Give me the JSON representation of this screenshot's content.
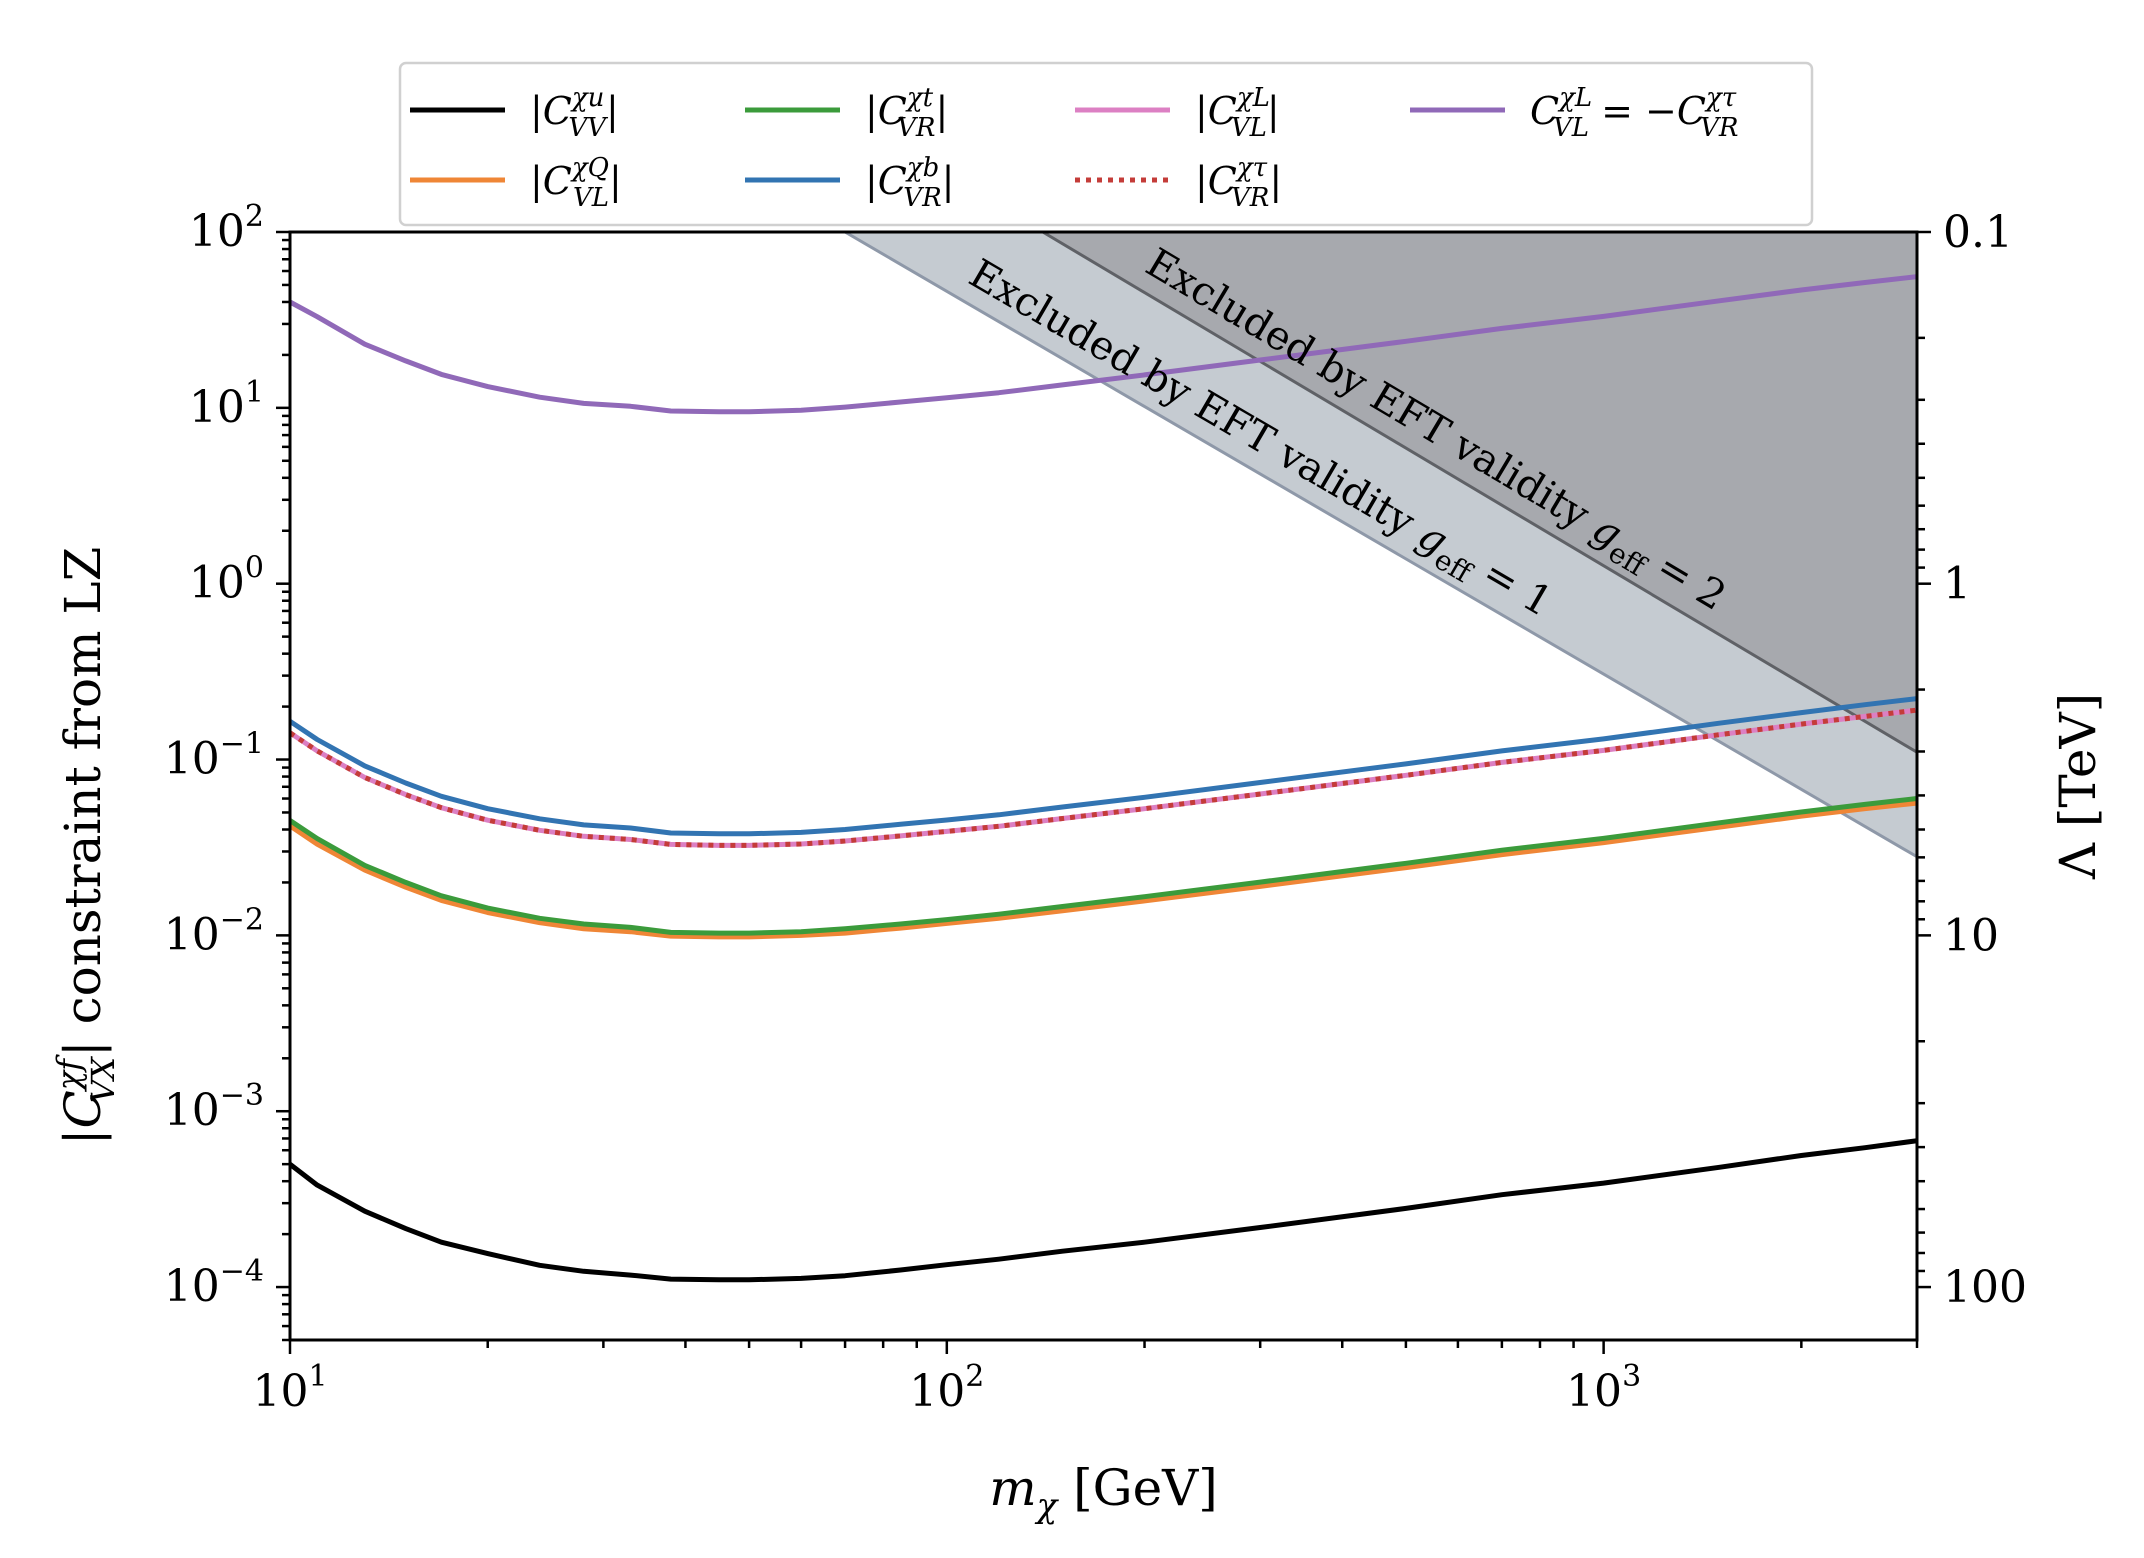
{
  "chart_data": {
    "type": "line",
    "title": "",
    "xlabel": "m_χ [GeV]",
    "ylabel": "|C^{χf}_{VX}| constraint from LZ",
    "y2label": "Λ [TeV]",
    "xscale": "log",
    "yscale": "log",
    "xlim": [
      10,
      3000
    ],
    "ylim": [
      5e-05,
      100
    ],
    "x_ticks": [
      {
        "value": 10,
        "base": "10",
        "exp": "1"
      },
      {
        "value": 100,
        "base": "10",
        "exp": "2"
      },
      {
        "value": 1000,
        "base": "10",
        "exp": "3"
      }
    ],
    "y_ticks": [
      {
        "value": 0.0001,
        "base": "10",
        "exp": "−4"
      },
      {
        "value": 0.001,
        "base": "10",
        "exp": "−3"
      },
      {
        "value": 0.01,
        "base": "10",
        "exp": "−2"
      },
      {
        "value": 0.1,
        "base": "10",
        "exp": "−1"
      },
      {
        "value": 1,
        "base": "10",
        "exp": "0"
      },
      {
        "value": 10,
        "base": "10",
        "exp": "1"
      },
      {
        "value": 100,
        "base": "10",
        "exp": "2"
      }
    ],
    "y2_ticks": [
      {
        "value": 0.1,
        "label": "0.1"
      },
      {
        "value": 1,
        "label": "1"
      },
      {
        "value": 10,
        "label": "10"
      },
      {
        "value": 100,
        "label": "100"
      }
    ],
    "x": [
      10,
      11,
      13,
      15,
      17,
      20,
      24,
      28,
      33,
      38,
      45,
      50,
      60,
      70,
      85,
      100,
      120,
      150,
      200,
      300,
      500,
      700,
      1000,
      1500,
      2000,
      2500,
      3000
    ],
    "series": [
      {
        "name": "|C^{χu}_{VV}|",
        "color": "#000000",
        "style": "solid",
        "values": [
          0.0005,
          0.00038,
          0.00027,
          0.000215,
          0.00018,
          0.000155,
          0.000133,
          0.000123,
          0.000117,
          0.000111,
          0.00011,
          0.00011,
          0.000112,
          0.000116,
          0.000125,
          0.000134,
          0.000144,
          0.00016,
          0.00018,
          0.000218,
          0.00028,
          0.000335,
          0.00039,
          0.00048,
          0.00056,
          0.00062,
          0.00068
        ]
      },
      {
        "name": "|C^{χQ}_{VL}|",
        "color": "#ef8636",
        "style": "solid",
        "values": [
          0.042,
          0.033,
          0.0235,
          0.0188,
          0.0158,
          0.0135,
          0.0118,
          0.0109,
          0.0105,
          0.0099,
          0.0098,
          0.0098,
          0.01,
          0.0103,
          0.011,
          0.0117,
          0.0125,
          0.0138,
          0.0157,
          0.019,
          0.0243,
          0.0288,
          0.0337,
          0.0413,
          0.0476,
          0.0525,
          0.0565
        ]
      },
      {
        "name": "|C^{χt}_{VR}|",
        "color": "#3b9b3b",
        "style": "solid",
        "values": [
          0.045,
          0.0355,
          0.025,
          0.02,
          0.0168,
          0.0143,
          0.0125,
          0.0116,
          0.0111,
          0.0104,
          0.0103,
          0.0103,
          0.0105,
          0.0109,
          0.0116,
          0.0123,
          0.0132,
          0.0146,
          0.0166,
          0.0201,
          0.0257,
          0.0305,
          0.0356,
          0.0437,
          0.0503,
          0.0556,
          0.06
        ]
      },
      {
        "name": "|C^{χb}_{VR}|",
        "color": "#3274b2",
        "style": "solid",
        "values": [
          0.165,
          0.13,
          0.092,
          0.0735,
          0.0618,
          0.0525,
          0.046,
          0.0425,
          0.0408,
          0.0382,
          0.0378,
          0.0378,
          0.0385,
          0.04,
          0.0428,
          0.0453,
          0.0485,
          0.0537,
          0.061,
          0.074,
          0.0945,
          0.112,
          0.131,
          0.161,
          0.185,
          0.205,
          0.222
        ]
      },
      {
        "name": "|C^{χL}_{VL}|",
        "color": "#dc80c3",
        "style": "solid",
        "values": [
          0.142,
          0.112,
          0.079,
          0.0632,
          0.0532,
          0.0452,
          0.0396,
          0.0366,
          0.0351,
          0.0329,
          0.0325,
          0.0325,
          0.0331,
          0.0344,
          0.0368,
          0.039,
          0.0417,
          0.0462,
          0.0525,
          0.0637,
          0.0813,
          0.0963,
          0.1127,
          0.1385,
          0.159,
          0.176,
          0.191
        ]
      },
      {
        "name": "|C^{χτ}_{VR}|",
        "color": "#c43c39",
        "style": "dotted",
        "values": [
          0.142,
          0.112,
          0.079,
          0.0632,
          0.0532,
          0.0452,
          0.0396,
          0.0366,
          0.0351,
          0.0329,
          0.0325,
          0.0325,
          0.0331,
          0.0344,
          0.0368,
          0.039,
          0.0417,
          0.0462,
          0.0525,
          0.0637,
          0.0813,
          0.0963,
          0.1127,
          0.1385,
          0.159,
          0.176,
          0.191
        ]
      },
      {
        "name": "C^{χL}_{VL} = −C^{χτ}_{VR}",
        "color": "#9069b8",
        "style": "solid",
        "values": [
          40,
          33,
          23,
          18.5,
          15.5,
          13.2,
          11.5,
          10.6,
          10.2,
          9.6,
          9.5,
          9.5,
          9.7,
          10.1,
          10.8,
          11.4,
          12.2,
          13.5,
          15.4,
          18.7,
          23.9,
          28.3,
          33.1,
          40.6,
          46.8,
          51.6,
          55.8
        ]
      }
    ],
    "bands": [
      {
        "label": "Excluded by EFT validity g_eff = 1",
        "color": "#c5cad1",
        "line": [
          [
            70,
            100
          ],
          [
            3000,
            0.028
          ]
        ]
      },
      {
        "label": "Excluded by EFT validity g_eff = 2",
        "color": "#a6a9ae",
        "line": [
          [
            140,
            100
          ],
          [
            3000,
            0.11
          ]
        ]
      }
    ],
    "legend": {
      "placement": "top",
      "entries": [
        {
          "text": "|C",
          "sup": "χu",
          "sub": "VV",
          "post": "|",
          "series": 0
        },
        {
          "text": "|C",
          "sup": "χQ",
          "sub": "VL",
          "post": "|",
          "series": 1
        },
        {
          "text": "|C",
          "sup": "χt",
          "sub": "VR",
          "post": "|",
          "series": 2
        },
        {
          "text": "|C",
          "sup": "χb",
          "sub": "VR",
          "post": "|",
          "series": 3
        },
        {
          "text": "|C",
          "sup": "χL",
          "sub": "VL",
          "post": "|",
          "series": 4
        },
        {
          "text": "|C",
          "sup": "χτ",
          "sub": "VR",
          "post": "|",
          "series": 5
        },
        {
          "text": "C",
          "sup": "χL",
          "sub": "VL",
          "post": " = −C",
          "sup2": "χτ",
          "sub2": "VR",
          "series": 6
        }
      ]
    },
    "band_labels": {
      "g1": {
        "pre": "Excluded by EFT validity ",
        "g": "g",
        "sub": "eff",
        "post": " = 1"
      },
      "g2": {
        "pre": "Excluded by EFT validity ",
        "g": "g",
        "sub": "eff",
        "post": " = 2"
      }
    },
    "axis_titles": {
      "x_main": "m",
      "x_sub": "χ",
      "x_post": " [GeV]",
      "y_pre": "|C",
      "y_sup": "χf",
      "y_sub": "VX",
      "y_post": "| constraint from LZ",
      "y2": "Λ [TeV]"
    }
  }
}
